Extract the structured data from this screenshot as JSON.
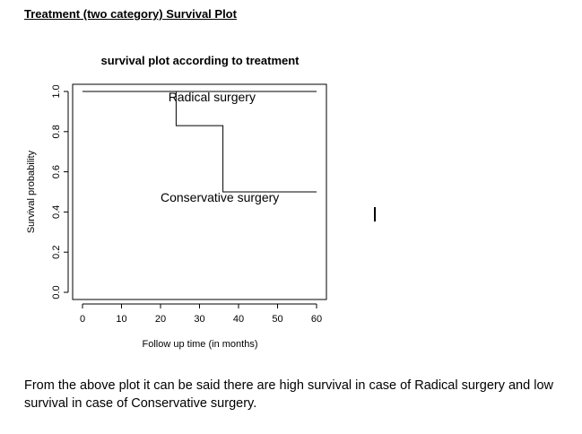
{
  "document": {
    "heading": "Treatment (two category) Survival Plot",
    "paragraph": "From the above plot it can be said there are high survival in case of Radical surgery and low survival in case of Conservative surgery."
  },
  "chart_data": {
    "type": "line",
    "title": "survival plot according to treatment",
    "xlabel": "Follow up time (in months)",
    "ylabel": "Survival probability",
    "xlim": [
      0,
      60
    ],
    "ylim": [
      0,
      1.0
    ],
    "xticks": [
      "0",
      "10",
      "20",
      "30",
      "40",
      "50",
      "60"
    ],
    "yticks": [
      "0.0",
      "0.2",
      "0.4",
      "0.6",
      "0.8",
      "1.0"
    ],
    "grid": false,
    "series": [
      {
        "name": "Radical surgery",
        "step": true,
        "x": [
          0,
          60
        ],
        "y": [
          1.0,
          1.0
        ],
        "label_at": [
          22,
          0.95
        ]
      },
      {
        "name": "Conservative surgery",
        "step": true,
        "x": [
          0,
          24,
          36,
          60
        ],
        "y": [
          1.0,
          0.83,
          0.5,
          0.5
        ],
        "label_at": [
          20,
          0.45
        ]
      }
    ]
  }
}
